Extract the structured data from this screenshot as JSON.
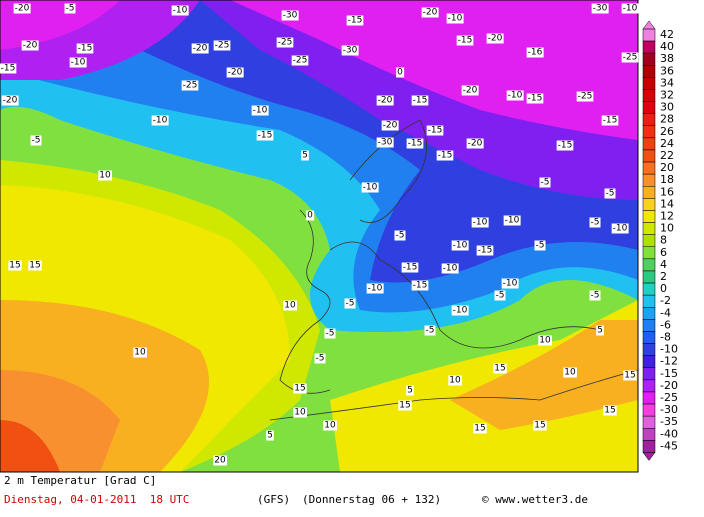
{
  "map": {
    "colorbar": [
      {
        "label": 42,
        "color": "#f080e0"
      },
      {
        "label": 40,
        "color": "#c00060"
      },
      {
        "label": 38,
        "color": "#a00020"
      },
      {
        "label": 36,
        "color": "#b00000"
      },
      {
        "label": 34,
        "color": "#c80000"
      },
      {
        "label": 32,
        "color": "#d80000"
      },
      {
        "label": 30,
        "color": "#e00010"
      },
      {
        "label": 28,
        "color": "#e82010"
      },
      {
        "label": 26,
        "color": "#f03010"
      },
      {
        "label": 24,
        "color": "#f04010"
      },
      {
        "label": 22,
        "color": "#f05010"
      },
      {
        "label": 20,
        "color": "#f87020"
      },
      {
        "label": 18,
        "color": "#f89030"
      },
      {
        "label": 16,
        "color": "#f8b020"
      },
      {
        "label": 14,
        "color": "#f8d020"
      },
      {
        "label": 12,
        "color": "#f0e800"
      },
      {
        "label": 10,
        "color": "#d0e800"
      },
      {
        "label": 8,
        "color": "#b0e000"
      },
      {
        "label": 6,
        "color": "#80e040"
      },
      {
        "label": 4,
        "color": "#50d060"
      },
      {
        "label": 2,
        "color": "#30c880"
      },
      {
        "label": 0,
        "color": "#20d0c0"
      },
      {
        "label": -2,
        "color": "#20c0f0"
      },
      {
        "label": -4,
        "color": "#20a0f0"
      },
      {
        "label": -6,
        "color": "#2080f0"
      },
      {
        "label": -8,
        "color": "#2060f0"
      },
      {
        "label": -10,
        "color": "#3040e0"
      },
      {
        "label": -12,
        "color": "#4020e0"
      },
      {
        "label": -15,
        "color": "#8020f0"
      },
      {
        "label": -20,
        "color": "#b020f0"
      },
      {
        "label": -25,
        "color": "#e020f0"
      },
      {
        "label": -30,
        "color": "#f040e0"
      },
      {
        "label": -35,
        "color": "#e060e0"
      },
      {
        "label": -40,
        "color": "#c040c0"
      },
      {
        "label": -45,
        "color": "#a020a0"
      }
    ],
    "labels": [
      -20,
      -5,
      -10,
      -30,
      -15,
      -20,
      -10,
      -30,
      -10,
      -20,
      -15,
      -20,
      -25,
      -25,
      -30,
      -15,
      -20,
      -16,
      -25,
      -15,
      -10,
      -20,
      -25,
      0,
      -20,
      -25,
      -20,
      -25,
      -15,
      -10,
      -10,
      -10,
      -20,
      -15,
      -20,
      -15,
      -15,
      -5,
      -15,
      -30,
      -15,
      -20,
      -15,
      10,
      5,
      -15,
      -5,
      -10,
      -5,
      -10,
      -10,
      -5,
      -10,
      0,
      -5,
      15,
      15,
      -10,
      -15,
      -5,
      -15,
      -10,
      -10,
      10,
      -10,
      -5,
      -15,
      -10,
      -5,
      -5,
      -5,
      -5,
      10,
      -5,
      5,
      10,
      10,
      15,
      15,
      15,
      15,
      10,
      5,
      10,
      10,
      5,
      15,
      15,
      20,
      15
    ],
    "footer": {
      "title": "2 m Temperatur [Grad C]",
      "date": "Dienstag, 04-01-2011  18 UTC",
      "model": "(GFS)",
      "forecast": "(Donnerstag 06 + 132)",
      "source": "© www.wetter3.de"
    }
  }
}
